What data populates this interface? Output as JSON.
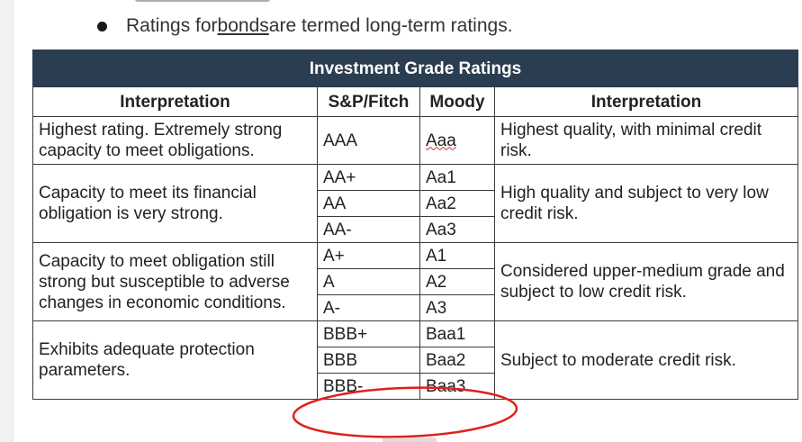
{
  "bullet": {
    "prefix": "Ratings for ",
    "link": "bonds",
    "suffix": " are termed long-term ratings."
  },
  "table": {
    "title": "Investment Grade Ratings",
    "headers": {
      "interp_left": "Interpretation",
      "sp_fitch": "S&P/Fitch",
      "moody": "Moody",
      "interp_right": "Interpretation"
    },
    "groups": [
      {
        "left": "Highest rating. Extremely strong capacity to meet obligations.",
        "right": "Highest quality, with minimal credit risk.",
        "rows": [
          {
            "sp": "AAA",
            "moody": "Aaa"
          }
        ]
      },
      {
        "left": "Capacity to meet its financial obligation is very strong.",
        "right": "High quality and subject to very low credit risk.",
        "rows": [
          {
            "sp": "AA+",
            "moody": "Aa1"
          },
          {
            "sp": "AA",
            "moody": "Aa2"
          },
          {
            "sp": "AA-",
            "moody": "Aa3"
          }
        ]
      },
      {
        "left": "Capacity to meet obligation still strong but susceptible to adverse changes in economic conditions.",
        "right": "Considered upper-medium grade and subject to low credit risk.",
        "rows": [
          {
            "sp": "A+",
            "moody": "A1"
          },
          {
            "sp": "A",
            "moody": "A2"
          },
          {
            "sp": "A-",
            "moody": "A3"
          }
        ]
      },
      {
        "left": "Exhibits adequate protection parameters.",
        "right": "Subject to moderate credit risk.",
        "rows": [
          {
            "sp": "BBB+",
            "moody": "Baa1"
          },
          {
            "sp": "BBB",
            "moody": "Baa2"
          },
          {
            "sp": "BBB-",
            "moody": "Baa3"
          }
        ]
      }
    ]
  },
  "colors": {
    "header_bg": "#2b3d50",
    "annotation_circle": "#e0201b"
  }
}
